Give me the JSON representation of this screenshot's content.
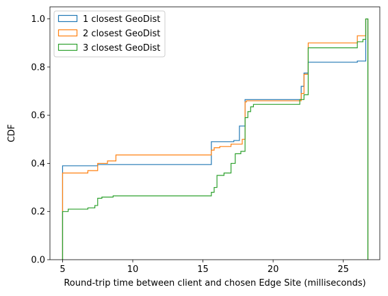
{
  "chart_data": {
    "type": "step",
    "xlabel": "Round-trip time between client and chosen Edge Site (milliseconds)",
    "ylabel": "CDF",
    "xlim": [
      4.1,
      27.6
    ],
    "ylim": [
      0,
      1.05
    ],
    "xticks": [
      5,
      10,
      15,
      20,
      25
    ],
    "yticks": [
      0.0,
      0.2,
      0.4,
      0.6,
      0.8,
      1.0
    ],
    "xtick_labels": [
      "5",
      "10",
      "15",
      "20",
      "25"
    ],
    "ytick_labels": [
      "0.0",
      "0.2",
      "0.4",
      "0.6",
      "0.8",
      "1.0"
    ],
    "grid": false,
    "legend_position": "top-left",
    "series": [
      {
        "name": "1 closest GeoDist",
        "color": "#1f77b4",
        "points": [
          [
            5.0,
            0.0
          ],
          [
            5.0,
            0.39
          ],
          [
            7.5,
            0.39
          ],
          [
            7.5,
            0.395
          ],
          [
            15.6,
            0.395
          ],
          [
            15.6,
            0.49
          ],
          [
            17.2,
            0.49
          ],
          [
            17.2,
            0.495
          ],
          [
            17.6,
            0.495
          ],
          [
            17.6,
            0.555
          ],
          [
            18.0,
            0.555
          ],
          [
            18.0,
            0.665
          ],
          [
            22.0,
            0.665
          ],
          [
            22.0,
            0.72
          ],
          [
            22.2,
            0.72
          ],
          [
            22.2,
            0.775
          ],
          [
            22.5,
            0.775
          ],
          [
            22.5,
            0.82
          ],
          [
            26.0,
            0.82
          ],
          [
            26.0,
            0.825
          ],
          [
            26.6,
            0.825
          ],
          [
            26.6,
            1.0
          ],
          [
            26.75,
            1.0
          ],
          [
            26.75,
            0.0
          ]
        ]
      },
      {
        "name": "2 closest GeoDist",
        "color": "#ff7f0e",
        "points": [
          [
            5.0,
            0.0
          ],
          [
            5.0,
            0.36
          ],
          [
            6.8,
            0.36
          ],
          [
            6.8,
            0.37
          ],
          [
            7.5,
            0.37
          ],
          [
            7.5,
            0.4
          ],
          [
            8.2,
            0.4
          ],
          [
            8.2,
            0.41
          ],
          [
            8.8,
            0.41
          ],
          [
            8.8,
            0.435
          ],
          [
            15.6,
            0.435
          ],
          [
            15.6,
            0.455
          ],
          [
            15.8,
            0.455
          ],
          [
            15.8,
            0.465
          ],
          [
            16.2,
            0.465
          ],
          [
            16.2,
            0.47
          ],
          [
            17.0,
            0.47
          ],
          [
            17.0,
            0.48
          ],
          [
            17.8,
            0.48
          ],
          [
            17.8,
            0.5
          ],
          [
            18.0,
            0.5
          ],
          [
            18.0,
            0.655
          ],
          [
            18.1,
            0.655
          ],
          [
            18.1,
            0.66
          ],
          [
            22.0,
            0.66
          ],
          [
            22.0,
            0.69
          ],
          [
            22.2,
            0.69
          ],
          [
            22.2,
            0.77
          ],
          [
            22.5,
            0.77
          ],
          [
            22.5,
            0.9
          ],
          [
            26.0,
            0.9
          ],
          [
            26.0,
            0.93
          ],
          [
            26.6,
            0.93
          ],
          [
            26.6,
            1.0
          ],
          [
            26.75,
            1.0
          ],
          [
            26.75,
            0.0
          ]
        ]
      },
      {
        "name": "3 closest GeoDist",
        "color": "#2ca02c",
        "points": [
          [
            5.0,
            0.0
          ],
          [
            5.0,
            0.2
          ],
          [
            5.4,
            0.2
          ],
          [
            5.4,
            0.21
          ],
          [
            6.8,
            0.21
          ],
          [
            6.8,
            0.215
          ],
          [
            7.3,
            0.215
          ],
          [
            7.3,
            0.225
          ],
          [
            7.5,
            0.225
          ],
          [
            7.5,
            0.255
          ],
          [
            7.8,
            0.255
          ],
          [
            7.8,
            0.26
          ],
          [
            8.6,
            0.26
          ],
          [
            8.6,
            0.265
          ],
          [
            15.6,
            0.265
          ],
          [
            15.6,
            0.28
          ],
          [
            15.8,
            0.28
          ],
          [
            15.8,
            0.3
          ],
          [
            16.0,
            0.3
          ],
          [
            16.0,
            0.35
          ],
          [
            16.5,
            0.35
          ],
          [
            16.5,
            0.36
          ],
          [
            17.0,
            0.36
          ],
          [
            17.0,
            0.4
          ],
          [
            17.3,
            0.4
          ],
          [
            17.3,
            0.44
          ],
          [
            17.7,
            0.44
          ],
          [
            17.7,
            0.45
          ],
          [
            18.0,
            0.45
          ],
          [
            18.0,
            0.59
          ],
          [
            18.2,
            0.59
          ],
          [
            18.2,
            0.615
          ],
          [
            18.4,
            0.615
          ],
          [
            18.4,
            0.635
          ],
          [
            18.6,
            0.635
          ],
          [
            18.6,
            0.645
          ],
          [
            21.9,
            0.645
          ],
          [
            21.9,
            0.665
          ],
          [
            22.2,
            0.665
          ],
          [
            22.2,
            0.685
          ],
          [
            22.5,
            0.685
          ],
          [
            22.5,
            0.88
          ],
          [
            26.0,
            0.88
          ],
          [
            26.0,
            0.905
          ],
          [
            26.4,
            0.905
          ],
          [
            26.4,
            0.915
          ],
          [
            26.6,
            0.915
          ],
          [
            26.6,
            1.0
          ],
          [
            26.75,
            1.0
          ],
          [
            26.75,
            0.0
          ]
        ]
      }
    ]
  }
}
